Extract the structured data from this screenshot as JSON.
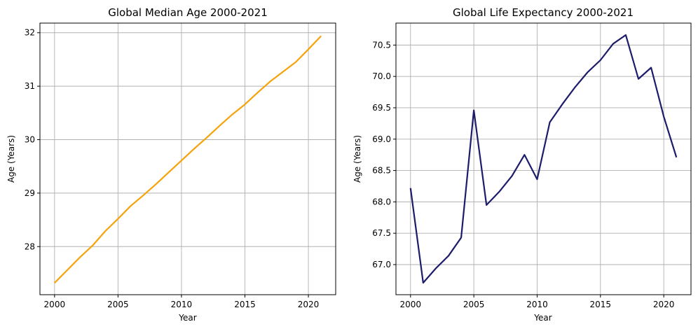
{
  "chart_data": [
    {
      "type": "line",
      "title": "Global Median Age 2000-2021",
      "xlabel": "Year",
      "ylabel": "Age (Years)",
      "xlim": [
        1998.85,
        2022.15
      ],
      "ylim": [
        27.1,
        32.18
      ],
      "xticks": [
        2000,
        2005,
        2010,
        2015,
        2020
      ],
      "yticks": [
        28,
        29,
        30,
        31,
        32
      ],
      "grid": true,
      "color": "#f5a30a",
      "x": [
        2000,
        2001,
        2002,
        2003,
        2004,
        2005,
        2006,
        2007,
        2008,
        2009,
        2010,
        2011,
        2012,
        2013,
        2014,
        2015,
        2016,
        2017,
        2018,
        2019,
        2020,
        2021
      ],
      "values": [
        27.32,
        27.56,
        27.8,
        28.02,
        28.29,
        28.52,
        28.76,
        28.96,
        29.17,
        29.39,
        29.61,
        29.83,
        30.04,
        30.26,
        30.47,
        30.66,
        30.88,
        31.09,
        31.27,
        31.45,
        31.69,
        31.94
      ]
    },
    {
      "type": "line",
      "title": "Global Life Expectancy 2000-2021",
      "xlabel": "Year",
      "ylabel": "Age (Years)",
      "xlim": [
        1998.85,
        2022.15
      ],
      "ylim": [
        66.52,
        70.85
      ],
      "xticks": [
        2000,
        2005,
        2010,
        2015,
        2020
      ],
      "yticks": [
        67.0,
        67.5,
        68.0,
        68.5,
        69.0,
        69.5,
        70.0,
        70.5
      ],
      "grid": true,
      "color": "#1c1c6b",
      "x": [
        2000,
        2001,
        2002,
        2003,
        2004,
        2005,
        2006,
        2007,
        2008,
        2009,
        2010,
        2011,
        2012,
        2013,
        2014,
        2015,
        2016,
        2017,
        2018,
        2019,
        2020,
        2021
      ],
      "values": [
        68.22,
        66.71,
        66.94,
        67.14,
        67.43,
        69.46,
        67.95,
        68.16,
        68.41,
        68.75,
        68.36,
        69.27,
        69.56,
        69.83,
        70.07,
        70.26,
        70.52,
        70.66,
        69.96,
        70.14,
        69.36,
        68.71
      ]
    }
  ]
}
